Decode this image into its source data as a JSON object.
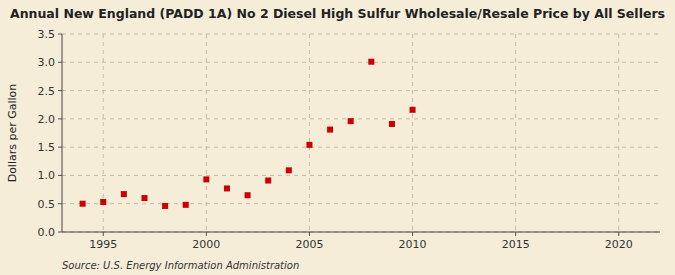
{
  "chart_data": {
    "type": "scatter",
    "title": "Annual New England (PADD 1A) No 2 Diesel High Sulfur Wholesale/Resale Price by All Sellers",
    "y_label": "Dollars per Gallon",
    "source": "Source: U.S. Energy Information Administration",
    "x": [
      1994,
      1995,
      1996,
      1997,
      1998,
      1999,
      2000,
      2001,
      2002,
      2003,
      2004,
      2005,
      2006,
      2007,
      2008,
      2009,
      2010
    ],
    "values": [
      0.5,
      0.53,
      0.67,
      0.6,
      0.46,
      0.48,
      0.93,
      0.77,
      0.65,
      0.91,
      1.09,
      1.54,
      1.81,
      1.96,
      3.01,
      1.91,
      2.16
    ],
    "color": "#cc0000",
    "marker": "square",
    "xlim": [
      1993,
      2022
    ],
    "ylim": [
      0,
      3.5
    ],
    "xticks": [
      1995,
      2000,
      2005,
      2010,
      2015,
      2020
    ],
    "yticks": [
      {
        "value": 0,
        "label": "0.0"
      },
      0.5,
      {
        "value": 1,
        "label": "1.0"
      },
      1.5,
      {
        "value": 2,
        "label": "2.0"
      },
      2.5,
      {
        "value": 3,
        "label": "3.0"
      },
      3.5
    ],
    "grid": true
  }
}
